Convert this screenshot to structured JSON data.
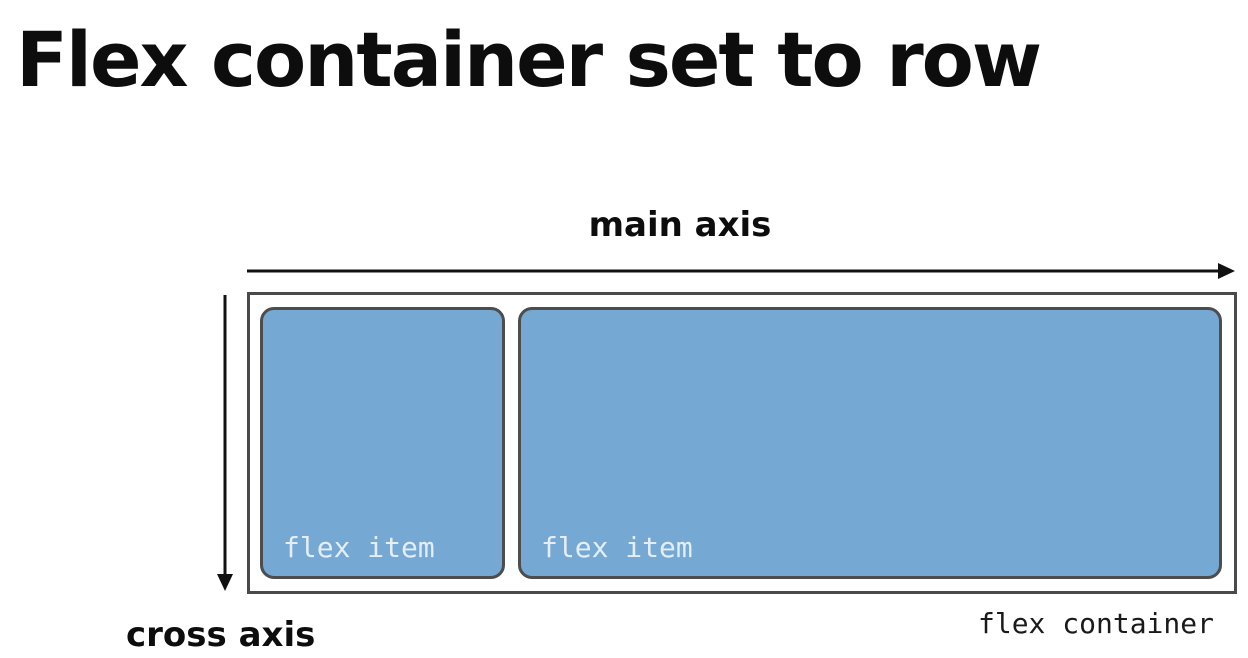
{
  "title": "Flex container set to row",
  "diagram": {
    "main_axis_label": "main axis",
    "cross_axis_label": "cross axis",
    "container_label": "flex container",
    "items": [
      {
        "label": "flex item"
      },
      {
        "label": "flex item"
      }
    ]
  },
  "colors": {
    "item_fill": "#75a8d3",
    "item_border": "#4d4d4d",
    "container_border": "#4a4a4a",
    "item_text": "#e4eef7"
  }
}
